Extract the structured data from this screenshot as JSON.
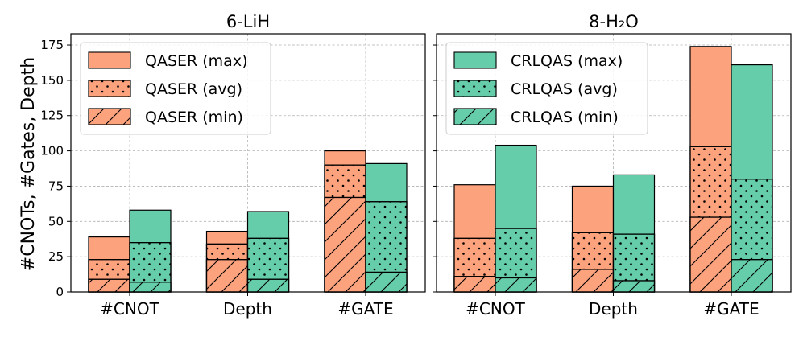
{
  "chart_data": {
    "type": "bar",
    "stacked_overlay": true,
    "ylabel": "#CNOTs, #Gates, Depth",
    "ylim": [
      0,
      183
    ],
    "yticks": [
      0,
      25,
      50,
      75,
      100,
      125,
      150,
      175
    ],
    "grid": true,
    "categories": [
      "#CNOT",
      "Depth",
      "#GATE"
    ],
    "colors": {
      "qaser": "#fca27d",
      "crlqas": "#66cdaa"
    },
    "panels": [
      {
        "title": "6-LiH",
        "legend": [
          "QASER (max)",
          "QASER (avg)",
          "QASER (min)"
        ],
        "legend_position": "top-left",
        "series": [
          {
            "name": "QASER",
            "max": [
              39,
              43,
              100
            ],
            "avg": [
              23,
              34,
              90
            ],
            "min": [
              9,
              23,
              67
            ]
          },
          {
            "name": "CRLQAS",
            "max": [
              58,
              57,
              91
            ],
            "avg": [
              35,
              38,
              64
            ],
            "min": [
              7,
              9,
              14
            ]
          }
        ]
      },
      {
        "title": "8-H₂O",
        "legend": [
          "CRLQAS (max)",
          "CRLQAS (avg)",
          "CRLQAS (min)"
        ],
        "legend_position": "top-left",
        "series": [
          {
            "name": "QASER",
            "max": [
              76,
              75,
              174
            ],
            "avg": [
              38,
              42,
              103
            ],
            "min": [
              11,
              16,
              53
            ]
          },
          {
            "name": "CRLQAS",
            "max": [
              104,
              83,
              161
            ],
            "avg": [
              45,
              41,
              80
            ],
            "min": [
              10,
              8,
              23
            ]
          }
        ]
      }
    ]
  }
}
